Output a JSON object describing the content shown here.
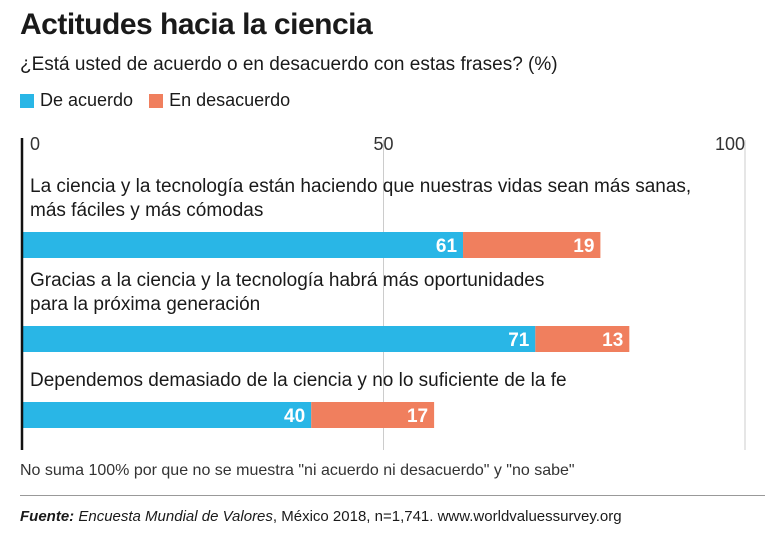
{
  "title": "Actitudes hacia la ciencia",
  "subtitle": "¿Está usted de acuerdo o en desacuerdo con estas frases? (%)",
  "legend": [
    {
      "label": "De acuerdo",
      "color": "#29b6e6"
    },
    {
      "label": "En desacuerdo",
      "color": "#f07f5e"
    }
  ],
  "note": "No suma 100% por que no se muestra \"ni acuerdo ni desacuerdo\" y \"no sabe\"",
  "source": {
    "label": "Fuente:",
    "name": "Encuesta Mundial de Valores",
    "rest": ", México 2018, n=1,741. www.worldvaluessurvey.org"
  },
  "chart_data": {
    "type": "bar",
    "orientation": "horizontal",
    "stacked": true,
    "xlim": [
      0,
      100
    ],
    "ticks": [
      0,
      50,
      100
    ],
    "categories": [
      [
        "La ciencia y la tecnología están haciendo que nuestras vidas sean más sanas,",
        "más fáciles y más cómodas"
      ],
      [
        "Gracias a la ciencia y la tecnología habrá más oportunidades",
        "para la próxima generación"
      ],
      [
        "Dependemos demasiado de la ciencia y no lo suficiente de la fe"
      ]
    ],
    "series": [
      {
        "name": "De acuerdo",
        "color": "#29b6e6",
        "values": [
          61,
          71,
          40
        ]
      },
      {
        "name": "En desacuerdo",
        "color": "#f07f5e",
        "values": [
          19,
          13,
          17
        ]
      }
    ]
  }
}
